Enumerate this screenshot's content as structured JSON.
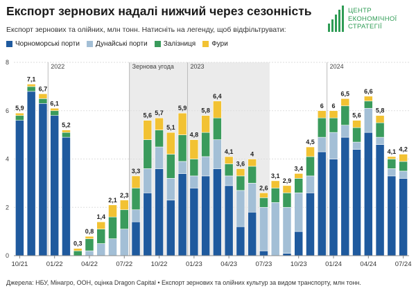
{
  "header": {
    "title": "Експорт зернових надалі нижчий через сезонність",
    "subtitle": "Експорт зернових та олійних, млн тонн. Натисніть на легенду, щоб відфільтрувати:"
  },
  "logo": {
    "line1": "ЦЕНТР",
    "line2": "ЕКОНОМІЧНОЇ",
    "line3": "СТРАТЕГІЇ",
    "color": "#2f9c55"
  },
  "source": "Джерела: НБУ, Мінагро, ООН, оцінка Dragon Capital • Експорт зернових та олійних культур за видом транспорту, млн тонн.",
  "chart_data": {
    "type": "bar",
    "stacked": true,
    "ylim": [
      0,
      8
    ],
    "yticks": [
      0,
      2,
      4,
      6,
      8
    ],
    "grid": true,
    "legend_position": "top-left",
    "categories": [
      "10/21",
      "11/21",
      "12/21",
      "01/22",
      "02/22",
      "03/22",
      "04/22",
      "05/22",
      "06/22",
      "07/22",
      "08/22",
      "09/22",
      "10/22",
      "11/22",
      "12/22",
      "01/23",
      "02/23",
      "03/23",
      "04/23",
      "05/23",
      "06/23",
      "07/23",
      "08/23",
      "09/23",
      "10/23",
      "11/23",
      "12/23",
      "01/24",
      "02/24",
      "03/24",
      "04/24",
      "05/24",
      "06/24",
      "07/24"
    ],
    "xtick_labels": [
      {
        "index": 0,
        "label": "10/21"
      },
      {
        "index": 3,
        "label": "01/22"
      },
      {
        "index": 6,
        "label": "04/22"
      },
      {
        "index": 9,
        "label": "07/22"
      },
      {
        "index": 12,
        "label": "10/22"
      },
      {
        "index": 15,
        "label": "01/23"
      },
      {
        "index": 18,
        "label": "04/23"
      },
      {
        "index": 21,
        "label": "07/23"
      },
      {
        "index": 24,
        "label": "10/23"
      },
      {
        "index": 27,
        "label": "01/24"
      },
      {
        "index": 30,
        "label": "04/24"
      },
      {
        "index": 33,
        "label": "07/24"
      }
    ],
    "totals": [
      5.9,
      7.1,
      6.7,
      6.1,
      5.2,
      0.3,
      0.8,
      1.4,
      2.1,
      2.3,
      3.3,
      5.6,
      5.7,
      5.1,
      5.9,
      4.8,
      5.8,
      6.4,
      4.1,
      3.6,
      4,
      2.6,
      3.1,
      2.9,
      3.4,
      4.5,
      6,
      6,
      6.5,
      5.6,
      6.6,
      5.8,
      4.1,
      4.2
    ],
    "series": [
      {
        "name": "Чорноморські порти",
        "color": "#1f5a9e",
        "values": [
          5.6,
          6.8,
          6.3,
          5.8,
          4.9,
          0,
          0,
          0,
          0,
          0,
          1.4,
          2.6,
          3.6,
          2.3,
          3.4,
          2.8,
          3.3,
          3.6,
          2.9,
          1.2,
          1.8,
          0.2,
          0,
          0.1,
          1.0,
          2.6,
          4.3,
          4.0,
          4.9,
          4.4,
          5.1,
          4.6,
          3.3,
          3.2
        ]
      },
      {
        "name": "Дунайські порти",
        "color": "#a3bfd6",
        "values": [
          0,
          0,
          0,
          0,
          0,
          0,
          0.2,
          0.5,
          0.7,
          1.1,
          0.5,
          1.0,
          0.9,
          0.9,
          0.5,
          0.5,
          0.8,
          1.2,
          0.4,
          1.5,
          1.2,
          1.8,
          2.2,
          1.9,
          1.6,
          0.7,
          0.6,
          1.1,
          0.5,
          0.3,
          1.0,
          0.3,
          0.3,
          0.3
        ]
      },
      {
        "name": "Залізниця",
        "color": "#3a9b5c",
        "values": [
          0.2,
          0.2,
          0.2,
          0.2,
          0.2,
          0.2,
          0.5,
          0.6,
          0.9,
          0.8,
          0.9,
          1.2,
          0.7,
          1.0,
          1.1,
          0.7,
          1.0,
          0.9,
          0.5,
          0.6,
          0.7,
          0.4,
          0.6,
          0.6,
          0.6,
          0.8,
          0.8,
          0.6,
          0.8,
          0.6,
          0.3,
          0.6,
          0.4,
          0.4
        ]
      },
      {
        "name": "Фури",
        "color": "#f2c233",
        "values": [
          0.1,
          0.1,
          0.2,
          0.1,
          0.1,
          0.1,
          0.1,
          0.3,
          0.5,
          0.4,
          0.5,
          0.8,
          0.5,
          0.9,
          0.9,
          0.8,
          0.7,
          0.7,
          0.3,
          0.3,
          0.3,
          0.2,
          0.3,
          0.3,
          0.2,
          0.4,
          0.3,
          0.3,
          0.3,
          0.3,
          0.2,
          0.3,
          0.1,
          0.3
        ]
      }
    ],
    "annotations": [
      {
        "text": "2022",
        "index": 3
      },
      {
        "text": "Зернова угода",
        "index": 10
      },
      {
        "text": "2023",
        "index": 15
      },
      {
        "text": "2024",
        "index": 27
      }
    ],
    "shaded_region": {
      "label": "Зернова угода",
      "from_index": 10,
      "to_index": 21
    }
  }
}
